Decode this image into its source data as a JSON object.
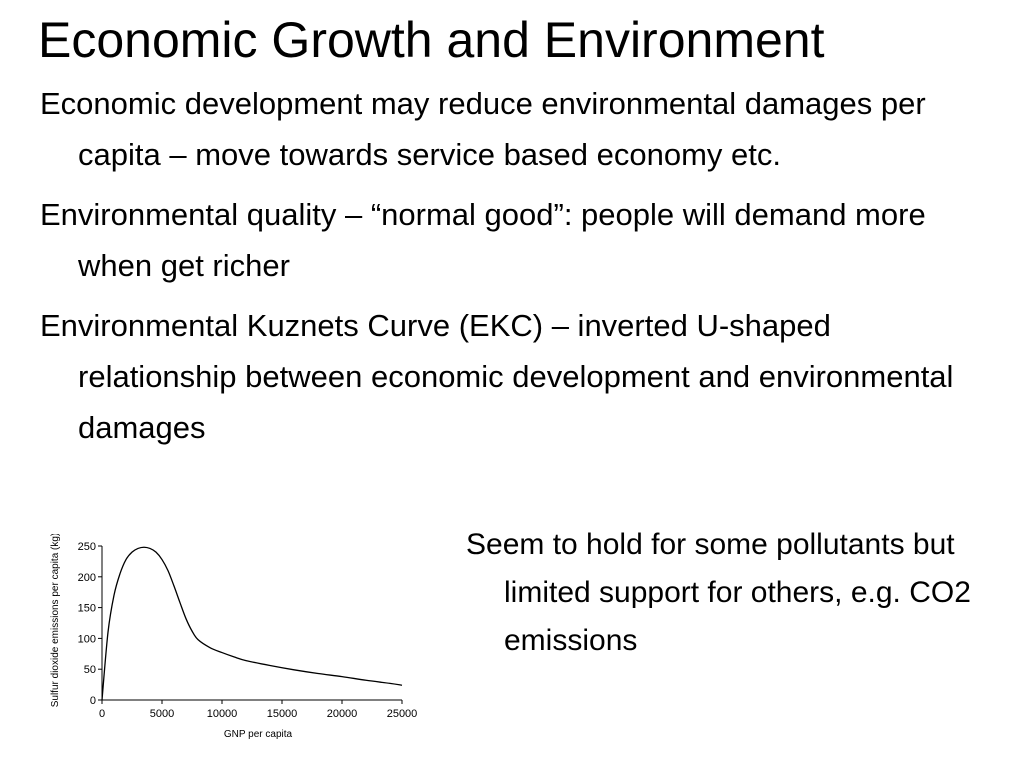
{
  "slide": {
    "title": "Economic Growth and Environment",
    "bullets": [
      "Economic development may reduce environmental damages per capita – move towards service based economy etc.",
      "Environmental quality – “normal good”: people will demand more when get richer",
      "Environmental Kuznets Curve (EKC) – inverted U-shaped relationship between economic development and environmental damages"
    ],
    "side_note": "Seem to hold for some pollutants but limited support for others, e.g. CO2 emissions"
  },
  "chart_data": {
    "type": "line",
    "title": "",
    "xlabel": "GNP per capita",
    "ylabel": "Sulfur dioxide emissions per capita (kg)",
    "xlim": [
      0,
      25000
    ],
    "ylim": [
      0,
      250
    ],
    "xticks": [
      "0",
      "5000",
      "10000",
      "15000",
      "20000",
      "25000"
    ],
    "yticks": [
      "0",
      "50",
      "100",
      "150",
      "200",
      "250"
    ],
    "grid": false,
    "series": [
      {
        "x": [
          0,
          500,
          1000,
          1500,
          2000,
          2500,
          3000,
          3500,
          4000,
          4500,
          5000,
          5500,
          6000,
          6500,
          7000,
          7500,
          8000,
          9000,
          10000,
          11000,
          12000,
          14000,
          16000,
          18000,
          20000,
          22000,
          24000,
          25000
        ],
        "y": [
          0,
          110,
          170,
          205,
          228,
          240,
          246,
          248,
          246,
          240,
          228,
          210,
          185,
          158,
          132,
          112,
          98,
          85,
          77,
          70,
          64,
          56,
          49,
          43,
          38,
          32,
          27,
          24
        ]
      }
    ]
  }
}
